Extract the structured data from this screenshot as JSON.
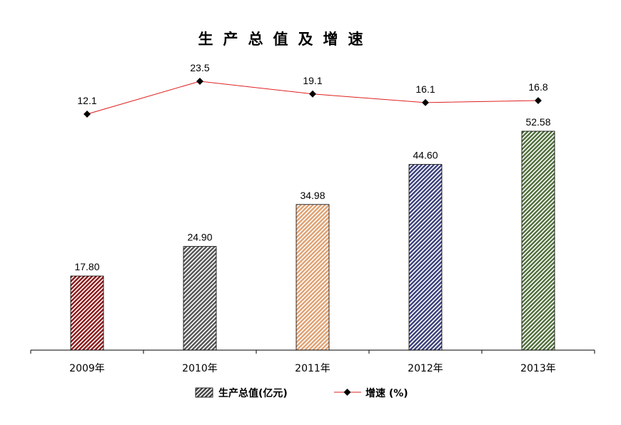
{
  "chart_data": {
    "type": "bar+line",
    "title": "生产总值及增速",
    "categories": [
      "2009年",
      "2010年",
      "2011年",
      "2012年",
      "2013年"
    ],
    "series": [
      {
        "name": "生产总值(亿元)",
        "type": "bar",
        "values": [
          17.8,
          24.9,
          34.98,
          44.6,
          52.58
        ],
        "labels": [
          "17.80",
          "24.90",
          "34.98",
          "44.60",
          "52.58"
        ],
        "colors": [
          "#8b1a1a",
          "#555555",
          "#e0a070",
          "#3a3f7a",
          "#4f6e3a"
        ]
      },
      {
        "name": "增速 (%)",
        "type": "line",
        "values": [
          12.1,
          23.5,
          19.1,
          16.1,
          16.8
        ],
        "labels": [
          "12.1",
          "23.5",
          "19.1",
          "16.1",
          "16.8"
        ],
        "color": "#e02020"
      }
    ],
    "grid": false,
    "legend_position": "bottom"
  }
}
